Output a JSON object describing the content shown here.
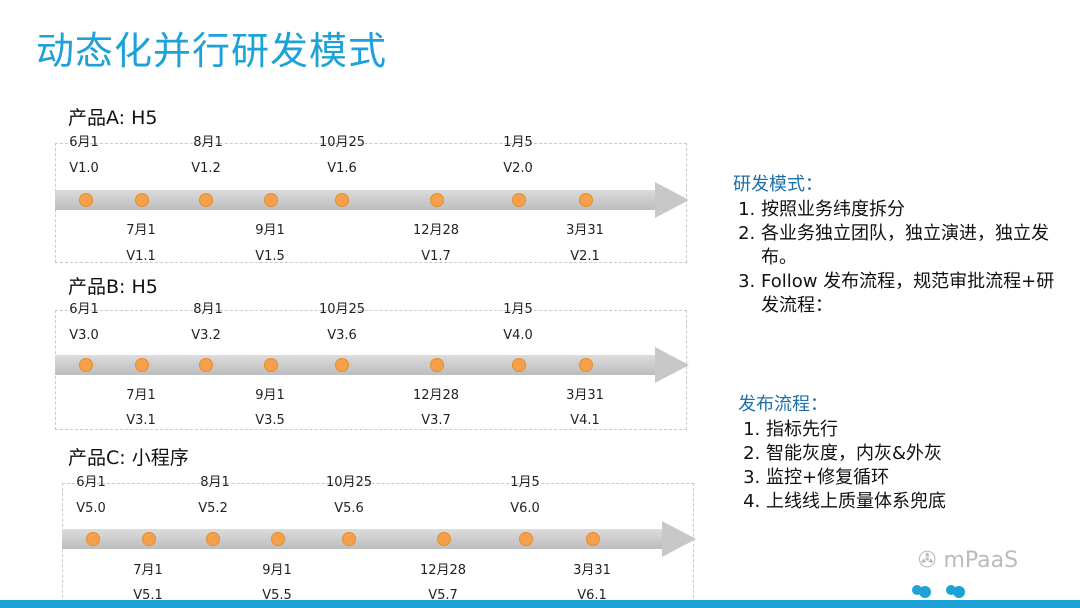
{
  "title": "动态化并行研发模式",
  "products": [
    {
      "label": "产品A:  H5",
      "top_dates": [
        "6月1",
        "8月1",
        "10月25",
        "1月5"
      ],
      "top_versions": [
        "V1.0",
        "V1.2",
        "V1.6",
        "V2.0"
      ],
      "bottom_dates": [
        "7月1",
        "9月1",
        "12月28",
        "3月31"
      ],
      "bottom_versions": [
        "V1.1",
        "V1.5",
        "V1.7",
        "V2.1"
      ]
    },
    {
      "label": "产品B:  H5",
      "top_dates": [
        "6月1",
        "8月1",
        "10月25",
        "1月5"
      ],
      "top_versions": [
        "V3.0",
        "V3.2",
        "V3.6",
        "V4.0"
      ],
      "bottom_dates": [
        "7月1",
        "9月1",
        "12月28",
        "3月31"
      ],
      "bottom_versions": [
        "V3.1",
        "V3.5",
        "V3.7",
        "V4.1"
      ]
    },
    {
      "label": "产品C:  小程序",
      "top_dates": [
        "6月1",
        "8月1",
        "10月25",
        "1月5"
      ],
      "top_versions": [
        "V5.0",
        "V5.2",
        "V5.6",
        "V6.0"
      ],
      "bottom_dates": [
        "7月1",
        "9月1",
        "12月28",
        "3月31"
      ],
      "bottom_versions": [
        "V5.1",
        "V5.5",
        "V5.7",
        "V6.1"
      ]
    }
  ],
  "dev_mode": {
    "title": "研发模式：",
    "items": [
      "按照业务纬度拆分",
      "各业务独立团队，独立演进，独立发布。",
      "Follow 发布流程，规范审批流程+研发流程："
    ]
  },
  "release_flow": {
    "title": "发布流程：",
    "items": [
      "指标先行",
      "智能灰度，内灰&外灰",
      "监控+修复循环",
      "上线线上质量体系兜底"
    ]
  },
  "watermark": "mPaaS",
  "colors": {
    "accent": "#1da2d8",
    "dot": "#f5a04a"
  }
}
